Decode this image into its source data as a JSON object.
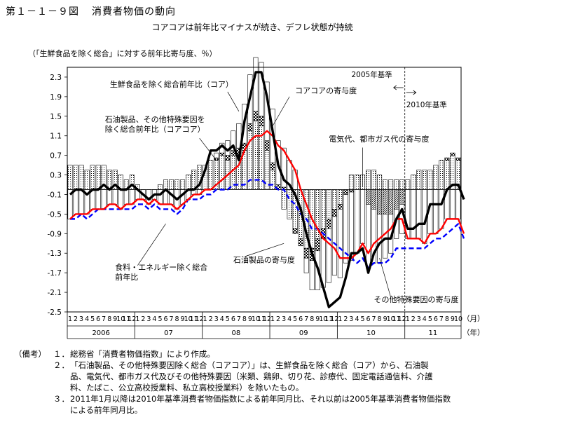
{
  "figure": {
    "number": "第１－１－９図",
    "title": "消費者物価の動向",
    "subtitle": "コアコアは前年比マイナスが続き、デフレ状態が持続"
  },
  "chart_data": {
    "type": "bar+line",
    "ylabel": "（「生鮮食品を除く総合」に対する前年比寄与度、％）",
    "ylim": [
      -2.5,
      2.5
    ],
    "yticks": [
      2.3,
      1.9,
      1.5,
      1.1,
      0.7,
      0.3,
      -0.1,
      -0.5,
      -0.9,
      -1.3,
      -1.7,
      -2.1,
      -2.5
    ],
    "month_labels": [
      "1",
      "2",
      "3",
      "4",
      "5",
      "6",
      "7",
      "8",
      "9",
      "10",
      "11",
      "12",
      "1",
      "2",
      "3",
      "4",
      "5",
      "6",
      "7",
      "8",
      "9",
      "10",
      "11",
      "12",
      "1",
      "2",
      "3",
      "4",
      "5",
      "6",
      "7",
      "8",
      "9",
      "10",
      "11",
      "12",
      "1",
      "2",
      "3",
      "4",
      "5",
      "6",
      "7",
      "8",
      "9",
      "10",
      "11",
      "12",
      "1",
      "2",
      "3",
      "4",
      "5",
      "6",
      "7",
      "8",
      "9",
      "10",
      "11",
      "12",
      "1",
      "2",
      "3",
      "4",
      "5",
      "6",
      "7",
      "8",
      "9",
      "10"
    ],
    "year_labels": [
      "2006",
      "07",
      "08",
      "09",
      "10",
      "11"
    ],
    "x_unit_month": "（月）",
    "x_unit_year": "（年）",
    "base_2005_label": "2005年基準",
    "base_2010_label": "2010年基準",
    "base_break_index": 60,
    "series": [
      {
        "name": "生鮮食品を除く総合前年比（コア）",
        "kind": "line",
        "color": "#000000",
        "values": [
          -0.1,
          0.0,
          0.0,
          -0.1,
          0.0,
          0.0,
          0.1,
          0.0,
          0.1,
          0.0,
          0.0,
          0.1,
          0.0,
          -0.1,
          -0.2,
          -0.1,
          -0.1,
          0.0,
          -0.1,
          -0.2,
          -0.1,
          0.0,
          0.0,
          0.1,
          0.4,
          0.8,
          0.8,
          0.9,
          0.8,
          0.9,
          0.6,
          1.4,
          1.9,
          2.4,
          2.4,
          1.9,
          1.2,
          0.5,
          0.2,
          0.1,
          -0.1,
          -0.4,
          -0.9,
          -1.3,
          -1.6,
          -2.0,
          -2.4,
          -2.3,
          -2.2,
          -1.8,
          -1.3,
          -1.3,
          -1.2,
          -1.7,
          -1.3,
          -1.1,
          -1.0,
          -1.0,
          -0.6,
          -0.4,
          -0.8,
          -0.8,
          -0.7,
          -0.7,
          -0.3,
          -0.3,
          -0.3,
          0.0,
          0.1,
          0.1,
          -0.2
        ]
      },
      {
        "name": "石油製品、その他特殊要因を除く総合前年比（コアコア）",
        "kind": "line",
        "color": "#ff0000",
        "values": [
          -0.6,
          -0.5,
          -0.5,
          -0.5,
          -0.4,
          -0.4,
          -0.4,
          -0.3,
          -0.3,
          -0.4,
          -0.3,
          -0.3,
          -0.2,
          -0.2,
          -0.3,
          -0.2,
          -0.3,
          -0.3,
          -0.3,
          -0.4,
          -0.3,
          -0.2,
          -0.1,
          -0.1,
          0.0,
          0.0,
          0.1,
          0.2,
          0.3,
          0.4,
          0.5,
          0.8,
          1.0,
          1.1,
          1.1,
          1.2,
          1.1,
          0.9,
          0.8,
          0.6,
          0.4,
          0.0,
          -0.3,
          -0.6,
          -0.8,
          -1.0,
          -1.1,
          -1.2,
          -1.4,
          -1.4,
          -1.4,
          -1.3,
          -1.1,
          -1.3,
          -1.1,
          -1.0,
          -0.9,
          -0.8,
          -0.6,
          -0.6,
          -1.0,
          -1.0,
          -1.0,
          -1.1,
          -0.9,
          -0.9,
          -0.8,
          -0.6,
          -0.6,
          -0.6,
          -0.9
        ]
      },
      {
        "name": "食料・エネルギー除く総合前年比",
        "kind": "line",
        "color": "#0000ff",
        "values": [
          -0.6,
          -0.6,
          -0.5,
          -0.6,
          -0.5,
          -0.4,
          -0.4,
          -0.4,
          -0.4,
          -0.4,
          -0.4,
          -0.4,
          -0.3,
          -0.3,
          -0.4,
          -0.3,
          -0.4,
          -0.4,
          -0.4,
          -0.5,
          -0.4,
          -0.2,
          -0.2,
          -0.2,
          -0.1,
          -0.1,
          0.0,
          0.0,
          0.0,
          0.1,
          0.1,
          0.1,
          0.2,
          0.2,
          0.2,
          0.1,
          0.1,
          0.0,
          0.0,
          -0.2,
          -0.3,
          -0.5,
          -0.6,
          -0.8,
          -0.8,
          -0.9,
          -1.0,
          -1.1,
          -1.2,
          -1.3,
          -1.4,
          -1.5,
          -1.4,
          -1.6,
          -1.5,
          -1.5,
          -1.5,
          -1.4,
          -1.2,
          -1.2,
          -1.2,
          -1.2,
          -1.2,
          -1.2,
          -1.1,
          -1.0,
          -1.0,
          -0.9,
          -0.8,
          -0.7,
          -1.0
        ]
      },
      {
        "name": "石油製品の寄与度",
        "kind": "bar",
        "pattern": "dots",
        "values": [
          0.5,
          0.5,
          0.5,
          0.4,
          0.5,
          0.5,
          0.5,
          0.4,
          0.4,
          0.3,
          0.2,
          0.3,
          0.1,
          0.0,
          0.0,
          0.0,
          0.1,
          0.2,
          0.2,
          0.2,
          0.2,
          0.3,
          0.4,
          0.5,
          0.5,
          0.6,
          0.6,
          0.7,
          0.6,
          0.7,
          0.7,
          0.8,
          1.2,
          1.4,
          1.3,
          0.8,
          0.4,
          0.0,
          -0.4,
          -0.6,
          -0.8,
          -1.0,
          -1.2,
          -1.2,
          -1.0,
          -0.8,
          -0.6,
          -0.4,
          -0.3,
          0.0,
          0.3,
          0.3,
          0.3,
          0.4,
          0.4,
          0.3,
          0.2,
          0.2,
          0.2,
          0.2,
          0.2,
          0.3,
          0.4,
          0.4,
          0.4,
          0.5,
          0.6,
          0.6,
          0.7,
          0.6,
          0.5
        ]
      },
      {
        "name": "電気代、都市ガス代の寄与度",
        "kind": "bar",
        "pattern": "checker",
        "values": [
          0.0,
          0.0,
          0.0,
          0.0,
          0.0,
          0.0,
          0.0,
          0.0,
          0.0,
          0.0,
          0.0,
          0.0,
          0.0,
          0.0,
          0.0,
          0.0,
          0.0,
          0.0,
          0.0,
          0.0,
          0.0,
          0.0,
          0.0,
          0.0,
          0.0,
          0.0,
          0.05,
          0.05,
          0.1,
          0.1,
          0.15,
          0.15,
          0.15,
          0.2,
          0.2,
          0.2,
          0.15,
          0.1,
          0.05,
          0.0,
          -0.1,
          -0.15,
          -0.2,
          -0.25,
          -0.25,
          -0.2,
          -0.2,
          -0.15,
          -0.1,
          -0.1,
          -0.05,
          0.0,
          0.0,
          0.0,
          0.0,
          0.0,
          0.0,
          0.0,
          0.0,
          0.0,
          0.0,
          0.0,
          0.0,
          0.0,
          0.0,
          0.0,
          0.0,
          0.05,
          0.05,
          0.05,
          0.05
        ]
      },
      {
        "name": "その他特殊要因の寄与度",
        "kind": "bar",
        "pattern": "hatch",
        "values": [
          0.0,
          0.0,
          0.0,
          0.0,
          0.0,
          0.0,
          0.0,
          0.0,
          0.0,
          0.0,
          0.0,
          0.0,
          0.0,
          0.0,
          0.0,
          0.0,
          0.0,
          0.0,
          0.0,
          0.0,
          0.0,
          0.0,
          0.0,
          0.0,
          0.0,
          0.0,
          0.0,
          0.0,
          0.0,
          0.0,
          0.0,
          0.0,
          0.0,
          0.0,
          0.0,
          0.0,
          0.0,
          0.0,
          0.0,
          0.0,
          0.0,
          0.0,
          0.0,
          0.0,
          0.0,
          0.0,
          0.0,
          0.0,
          0.0,
          0.0,
          0.0,
          0.0,
          0.0,
          -0.3,
          -0.4,
          -0.5,
          -0.5,
          -0.5,
          -0.4,
          -0.3,
          0.0,
          0.0,
          0.0,
          0.0,
          0.0,
          0.0,
          0.0,
          0.0,
          0.0,
          0.0,
          0.0
        ]
      }
    ],
    "annotations": [
      {
        "text": "生鮮食品を除く総合前年比（コア）",
        "i": 29,
        "v": 2.1,
        "align": "end"
      },
      {
        "text": "コアコアの寄与度",
        "i": 40,
        "v": 1.97,
        "align": "start"
      },
      {
        "text": "石油製品、その他特殊要因を",
        "i": 24,
        "v": 1.38,
        "align": "end"
      },
      {
        "text": "除く総合前年比（コアコア）",
        "i": 24,
        "v": 1.18,
        "align": "end"
      },
      {
        "text": "電気代、都市ガス代の寄与度",
        "i": 46,
        "v": 0.98,
        "align": "start"
      },
      {
        "text": "食料・エネルギー除く総合",
        "i": 8,
        "v": -1.64,
        "align": "start"
      },
      {
        "text": "前年比",
        "i": 8,
        "v": -1.84,
        "align": "start"
      },
      {
        "text": "石油製品の寄与度",
        "i": 29,
        "v": -1.49,
        "align": "start"
      },
      {
        "text": "その他特殊要因の寄与度",
        "i": 54,
        "v": -2.3,
        "align": "start"
      }
    ],
    "grid": false,
    "legend": "none"
  },
  "notes": {
    "label": "（備考）",
    "items": [
      {
        "num": "１．",
        "lines": [
          "総務省「消費者物価指数」により作成。"
        ]
      },
      {
        "num": "２．",
        "lines": [
          "「石油製品、その他特殊要因除く総合（コアコア）」は、生鮮食品を除く総合（コア）から、石油製",
          "品、電気代、都市ガス代及びその他特殊要因（米類、鶏卵、切り花、診療代、固定電話通信料、介護",
          "料、たばこ、公立高校授業料、私立高校授業料）を除いたもの。"
        ]
      },
      {
        "num": "３．",
        "lines": [
          "2011年1月以降は2010年基準消費者物価指数による前年同月比、それ以前は2005年基準消費者物価指数",
          "による前年同月比。"
        ]
      }
    ]
  }
}
